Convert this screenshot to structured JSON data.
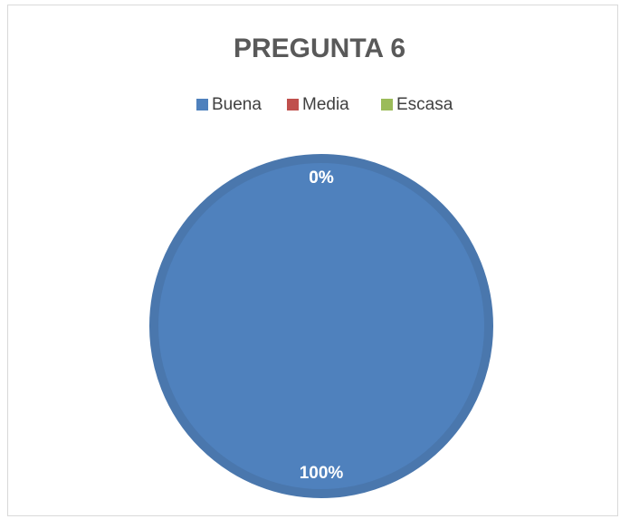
{
  "chart_data": {
    "type": "pie",
    "title": "PREGUNTA 6",
    "categories": [
      "Buena",
      "Media",
      "Escasa"
    ],
    "values": [
      100,
      0,
      0
    ],
    "value_labels": [
      "100%",
      "0%",
      "0%"
    ],
    "colors": [
      "#4f81bd",
      "#c0504d",
      "#9bbb59"
    ],
    "legend": "top"
  }
}
